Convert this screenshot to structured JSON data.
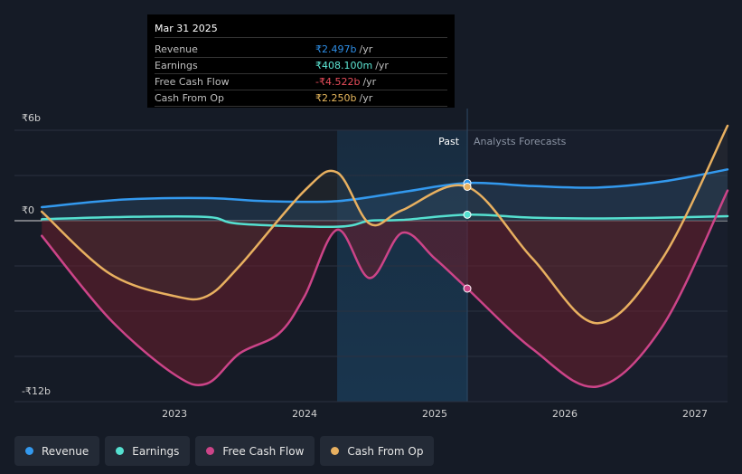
{
  "tooltip": {
    "date": "Mar 31 2025",
    "rows": [
      {
        "label": "Revenue",
        "value": "₹2.497b",
        "unit": "/yr",
        "color": "#2e8ee6"
      },
      {
        "label": "Earnings",
        "value": "₹408.100m",
        "unit": "/yr",
        "color": "#5ee8d6"
      },
      {
        "label": "Free Cash Flow",
        "value": "-₹4.522b",
        "unit": "/yr",
        "color": "#e84d5b"
      },
      {
        "label": "Cash From Op",
        "value": "₹2.250b",
        "unit": "/yr",
        "color": "#e8b85e"
      }
    ]
  },
  "legend": [
    {
      "label": "Revenue",
      "color": "#3399ee"
    },
    {
      "label": "Earnings",
      "color": "#55e0d0"
    },
    {
      "label": "Free Cash Flow",
      "color": "#cc4488"
    },
    {
      "label": "Cash From Op",
      "color": "#e8b060"
    }
  ],
  "chart_data": {
    "type": "line",
    "title": "",
    "xlabel": "",
    "ylabel": "",
    "ylim": [
      -12,
      6
    ],
    "y_ticks": [
      {
        "value": 6,
        "label": "₹6b"
      },
      {
        "value": 0,
        "label": "₹0"
      },
      {
        "value": -12,
        "label": "-₹12b"
      }
    ],
    "x_ticks": [
      {
        "value": 2023.0,
        "label": "2023"
      },
      {
        "value": 2024.0,
        "label": "2024"
      },
      {
        "value": 2025.0,
        "label": "2025"
      },
      {
        "value": 2026.0,
        "label": "2026"
      },
      {
        "value": 2027.0,
        "label": "2027"
      }
    ],
    "xlim": [
      2021.77,
      2027.25
    ],
    "past_label": "Past",
    "forecast_label": "Analysts Forecasts",
    "past_start": 2024.25,
    "forecast_start": 2025.25,
    "marker_x": 2025.25,
    "series": [
      {
        "name": "Revenue",
        "color": "#3399ee",
        "points": [
          [
            2021.98,
            0.9
          ],
          [
            2022.6,
            1.4
          ],
          [
            2023.25,
            1.5
          ],
          [
            2023.7,
            1.3
          ],
          [
            2024.25,
            1.3
          ],
          [
            2024.75,
            1.9
          ],
          [
            2025.25,
            2.5
          ],
          [
            2025.75,
            2.3
          ],
          [
            2026.25,
            2.2
          ],
          [
            2026.75,
            2.6
          ],
          [
            2027.25,
            3.4
          ]
        ]
      },
      {
        "name": "Earnings",
        "color": "#55e0d0",
        "points": [
          [
            2021.98,
            0.1
          ],
          [
            2022.6,
            0.25
          ],
          [
            2023.25,
            0.25
          ],
          [
            2023.5,
            -0.2
          ],
          [
            2024.25,
            -0.4
          ],
          [
            2024.5,
            0.0
          ],
          [
            2024.75,
            0.05
          ],
          [
            2025.25,
            0.4
          ],
          [
            2025.75,
            0.2
          ],
          [
            2026.25,
            0.15
          ],
          [
            2026.75,
            0.2
          ],
          [
            2027.25,
            0.3
          ]
        ]
      },
      {
        "name": "Free Cash Flow",
        "color": "#cc4488",
        "points": [
          [
            2021.98,
            -1.0
          ],
          [
            2022.5,
            -6.5
          ],
          [
            2023.0,
            -10.2
          ],
          [
            2023.25,
            -10.8
          ],
          [
            2023.5,
            -8.8
          ],
          [
            2023.8,
            -7.5
          ],
          [
            2024.0,
            -5.0
          ],
          [
            2024.25,
            -0.6
          ],
          [
            2024.5,
            -3.8
          ],
          [
            2024.75,
            -0.8
          ],
          [
            2025.0,
            -2.5
          ],
          [
            2025.25,
            -4.5
          ],
          [
            2025.75,
            -8.5
          ],
          [
            2026.25,
            -11.0
          ],
          [
            2026.75,
            -7.0
          ],
          [
            2027.25,
            2.0
          ]
        ]
      },
      {
        "name": "Cash From Op",
        "color": "#e8b060",
        "points": [
          [
            2021.98,
            0.6
          ],
          [
            2022.5,
            -3.5
          ],
          [
            2023.0,
            -5.0
          ],
          [
            2023.25,
            -5.0
          ],
          [
            2023.5,
            -3.0
          ],
          [
            2024.0,
            2.0
          ],
          [
            2024.25,
            3.2
          ],
          [
            2024.5,
            -0.2
          ],
          [
            2024.75,
            0.7
          ],
          [
            2025.25,
            2.25
          ],
          [
            2025.75,
            -2.5
          ],
          [
            2026.25,
            -6.8
          ],
          [
            2026.75,
            -2.5
          ],
          [
            2027.25,
            6.3
          ]
        ]
      }
    ]
  }
}
